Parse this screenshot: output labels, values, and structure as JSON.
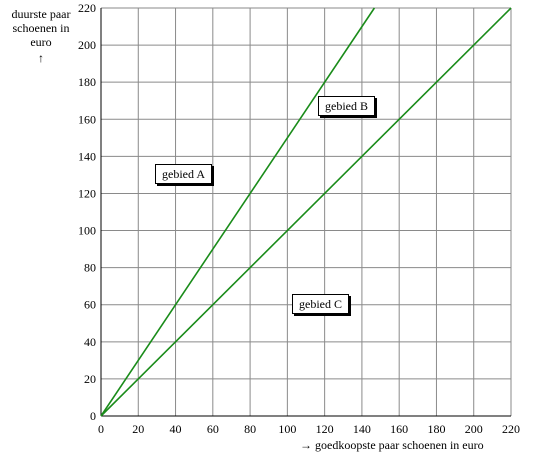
{
  "chart_data": {
    "type": "line",
    "title": "",
    "ylabel_lines": [
      "duurste paar",
      "schoenen in",
      "euro",
      "↑"
    ],
    "xlabel": "→ goedkoopste paar schoenen in euro",
    "xlim": [
      0,
      220
    ],
    "ylim": [
      0,
      220
    ],
    "x_ticks": [
      0,
      20,
      40,
      60,
      80,
      100,
      120,
      140,
      160,
      180,
      200,
      220
    ],
    "y_ticks": [
      0,
      20,
      40,
      60,
      80,
      100,
      120,
      140,
      160,
      180,
      200,
      220
    ],
    "grid": true,
    "series": [
      {
        "x": [
          0,
          146.7
        ],
        "y": [
          0,
          220
        ],
        "color": "#1a8c1a"
      },
      {
        "x": [
          0,
          220
        ],
        "y": [
          0,
          220
        ],
        "color": "#1a8c1a"
      }
    ],
    "annotations": [
      {
        "text": "gebied A",
        "x": 48,
        "y": 130
      },
      {
        "text": "gebied B",
        "x": 136,
        "y": 166
      },
      {
        "text": "gebied C",
        "x": 123,
        "y": 60
      }
    ]
  }
}
